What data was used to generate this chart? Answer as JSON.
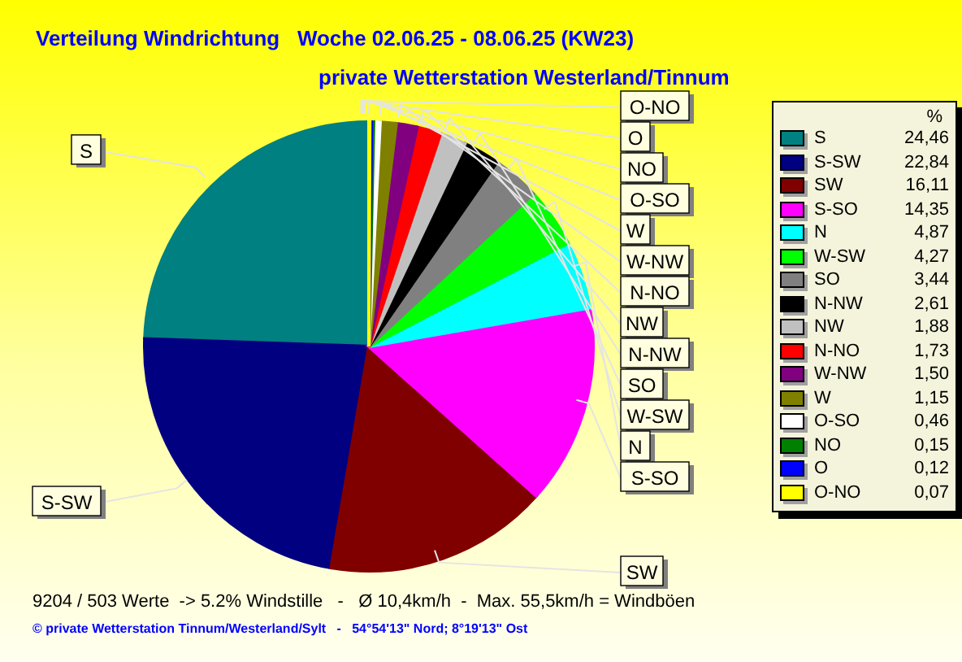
{
  "chart_data": {
    "type": "pie",
    "title": "Verteilung Windrichtung   Woche 02.06.25 - 08.06.25 (KW23)",
    "subtitle": "private Wetterstation Westerland/Tinnum",
    "legend_title": "%",
    "legend": "right",
    "categories": [
      "S",
      "S-SW",
      "SW",
      "S-SO",
      "N",
      "W-SW",
      "SO",
      "N-NW",
      "NW",
      "N-NO",
      "W-NW",
      "W",
      "O-SO",
      "NO",
      "O",
      "O-NO"
    ],
    "values": [
      24.46,
      22.84,
      16.11,
      14.35,
      4.87,
      4.27,
      3.44,
      2.61,
      1.88,
      1.73,
      1.5,
      1.15,
      0.46,
      0.15,
      0.12,
      0.07
    ],
    "value_labels": [
      "24,46",
      "22,84",
      "16,11",
      "14,35",
      "4,87",
      "4,27",
      "3,44",
      "2,61",
      "1,88",
      "1,73",
      "1,50",
      "1,15",
      "0,46",
      "0,15",
      "0,12",
      "0,07"
    ],
    "colors": [
      "#008080",
      "#000080",
      "#800000",
      "#ff00ff",
      "#00ffff",
      "#00ff00",
      "#808080",
      "#000000",
      "#c0c0c0",
      "#ff0000",
      "#800080",
      "#808000",
      "#ffffff",
      "#008000",
      "#0000ff",
      "#ffff00"
    ],
    "annotations": [
      "9204 / 503 Werte  -> 5.2% Windstille   -   Ø 10,4km/h  -  Max. 55,5km/h = Windböen",
      "© private Wetterstation Tinnum/Westerland/Sylt   -   54°54'13\" Nord; 8°19'13\" Ost"
    ]
  }
}
